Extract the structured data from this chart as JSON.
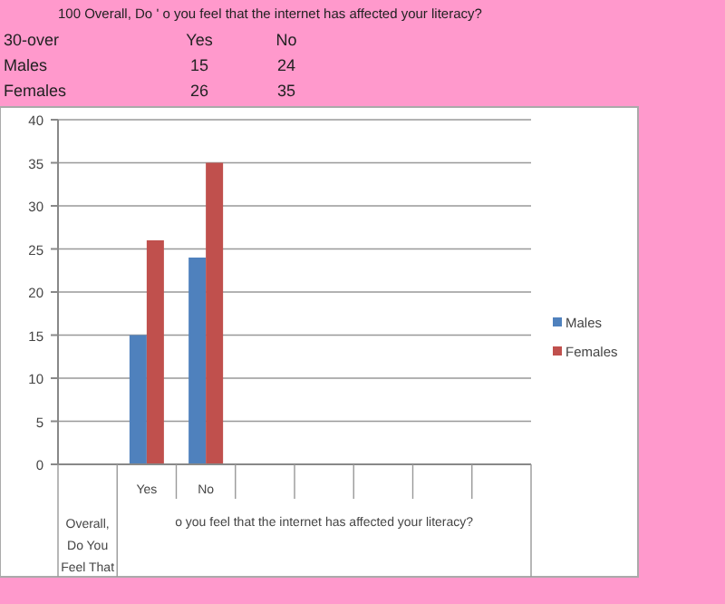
{
  "chart_data": {
    "type": "bar",
    "title": "100  Overall, Do ' o you feel that the internet has affected your literacy?",
    "categories": [
      null,
      "Yes",
      "No",
      null,
      null,
      null,
      null,
      null
    ],
    "series": [
      {
        "name": "Males",
        "color": "#4f81bd",
        "values": [
          null,
          15,
          24,
          null,
          null,
          null,
          null,
          null
        ]
      },
      {
        "name": "Females",
        "color": "#c0504d",
        "values": [
          null,
          26,
          35,
          null,
          null,
          null,
          null,
          null
        ]
      }
    ],
    "xlabel": "o you feel that the internet has affected your literacy?",
    "annotations": [
      "30-over",
      "Overall, Do You Feel That",
      "15",
      "24",
      "26",
      "35"
    ],
    "ylim": [
      0,
      40
    ],
    "yticks": [
      0,
      5,
      10,
      15,
      20,
      25,
      30,
      35,
      40
    ],
    "grid": "y",
    "legend": "right"
  }
}
